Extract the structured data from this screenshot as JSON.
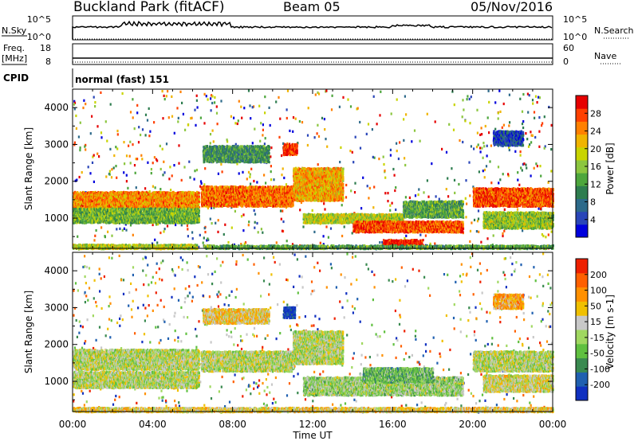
{
  "header": {
    "station": "Buckland Park (fitACF)",
    "beam": "Beam 05",
    "date": "05/Nov/2016"
  },
  "top_panels": {
    "nsky_label": "N.Sky",
    "nsky_ticks": [
      "10^5",
      "10^0"
    ],
    "nsearch_label": "N.Search",
    "nsearch_ticks": [
      "10^5",
      "10^0"
    ],
    "freq_label_1": "Freq.",
    "freq_label_2": "[MHz]",
    "freq_ticks": [
      "18",
      "8"
    ],
    "nave_label": "Nave",
    "nave_ticks": [
      "60",
      "0"
    ],
    "cpid_label": "CPID",
    "cpid_value": "normal (fast) 151"
  },
  "chart_data": [
    {
      "type": "heatmap",
      "name": "power",
      "ylabel": "Slant Range [km]",
      "xlabel": "",
      "ylim": [
        180,
        4500
      ],
      "yticks": [
        1000,
        2000,
        3000,
        4000
      ],
      "xlim": [
        0,
        24
      ],
      "colorbar_label": "Power [dB]",
      "colorbar_ticks": [
        "28",
        "24",
        "20",
        "16",
        "12",
        "8",
        "4"
      ],
      "colors": [
        "#0000dd",
        "#2a46b8",
        "#2d6a8a",
        "#2e7d4f",
        "#4da63c",
        "#8cc63f",
        "#c8d400",
        "#f0b400",
        "#ff8000",
        "#ff4000",
        "#e60000"
      ],
      "echo_regions": [
        {
          "t0": 0.0,
          "t1": 6.3,
          "r0": 1300,
          "r1": 1750,
          "level": 0.75
        },
        {
          "t0": 0.0,
          "t1": 6.3,
          "r0": 900,
          "r1": 1300,
          "level": 0.45
        },
        {
          "t0": 0.0,
          "t1": 6.2,
          "r0": 200,
          "r1": 320,
          "level": 0.55
        },
        {
          "t0": 6.4,
          "t1": 11.0,
          "r0": 1350,
          "r1": 1900,
          "level": 0.8
        },
        {
          "t0": 11.0,
          "t1": 13.5,
          "r0": 1500,
          "r1": 2400,
          "level": 0.7
        },
        {
          "t0": 6.5,
          "t1": 9.8,
          "r0": 2550,
          "r1": 3000,
          "level": 0.35
        },
        {
          "t0": 10.5,
          "t1": 11.2,
          "r0": 2750,
          "r1": 3050,
          "level": 0.9
        },
        {
          "t0": 11.5,
          "t1": 16.5,
          "r0": 900,
          "r1": 1150,
          "level": 0.55
        },
        {
          "t0": 14.0,
          "t1": 19.5,
          "r0": 650,
          "r1": 950,
          "level": 0.85
        },
        {
          "t0": 15.5,
          "t1": 17.5,
          "r0": 220,
          "r1": 450,
          "level": 0.95
        },
        {
          "t0": 16.5,
          "t1": 19.5,
          "r0": 1050,
          "r1": 1500,
          "level": 0.4
        },
        {
          "t0": 20.0,
          "t1": 24.0,
          "r0": 1350,
          "r1": 1850,
          "level": 0.85
        },
        {
          "t0": 20.5,
          "t1": 24.0,
          "r0": 750,
          "r1": 1200,
          "level": 0.5
        },
        {
          "t0": 21.0,
          "t1": 22.5,
          "r0": 3000,
          "r1": 3400,
          "level": 0.15
        },
        {
          "t0": 6.5,
          "t1": 24.0,
          "r0": 200,
          "r1": 300,
          "level": 0.4
        }
      ]
    },
    {
      "type": "heatmap",
      "name": "velocity",
      "ylabel": "Slant Range [km]",
      "xlabel": "Time UT",
      "ylim": [
        180,
        4500
      ],
      "yticks": [
        1000,
        2000,
        3000,
        4000
      ],
      "xlim": [
        0,
        24
      ],
      "xtick_labels": [
        "00:00",
        "04:00",
        "08:00",
        "12:00",
        "16:00",
        "20:00",
        "00:00"
      ],
      "colorbar_label": "Velocity [m s-1]",
      "colorbar_ticks": [
        "200",
        "100",
        "50",
        "15",
        "-15",
        "-50",
        "-100",
        "-200"
      ],
      "colors": [
        "#1030c0",
        "#2060b0",
        "#3a8a50",
        "#60c040",
        "#a0d860",
        "#c8c8c8",
        "#f0c000",
        "#ff9000",
        "#ff6000",
        "#ee2000"
      ],
      "echo_regions": [
        {
          "t0": 0.0,
          "t1": 6.3,
          "r0": 1350,
          "r1": 1900,
          "level": 0.5
        },
        {
          "t0": 0.0,
          "t1": 6.3,
          "r0": 850,
          "r1": 1300,
          "level": 0.5
        },
        {
          "t0": 6.4,
          "t1": 11.0,
          "r0": 1300,
          "r1": 1850,
          "level": 0.5
        },
        {
          "t0": 11.0,
          "t1": 13.5,
          "r0": 1500,
          "r1": 2400,
          "level": 0.5
        },
        {
          "t0": 6.5,
          "t1": 9.8,
          "r0": 2600,
          "r1": 3000,
          "level": 0.62
        },
        {
          "t0": 10.5,
          "t1": 11.1,
          "r0": 2750,
          "r1": 3050,
          "level": 0.05
        },
        {
          "t0": 11.5,
          "t1": 19.5,
          "r0": 650,
          "r1": 1150,
          "level": 0.45
        },
        {
          "t0": 14.5,
          "t1": 18.0,
          "r0": 1000,
          "r1": 1400,
          "level": 0.35
        },
        {
          "t0": 20.0,
          "t1": 24.0,
          "r0": 1300,
          "r1": 1850,
          "level": 0.5
        },
        {
          "t0": 20.5,
          "t1": 24.0,
          "r0": 750,
          "r1": 1200,
          "level": 0.55
        },
        {
          "t0": 21.0,
          "t1": 22.5,
          "r0": 3000,
          "r1": 3400,
          "level": 0.7
        },
        {
          "t0": 0.0,
          "t1": 24.0,
          "r0": 200,
          "r1": 320,
          "level": 0.6
        }
      ]
    }
  ]
}
